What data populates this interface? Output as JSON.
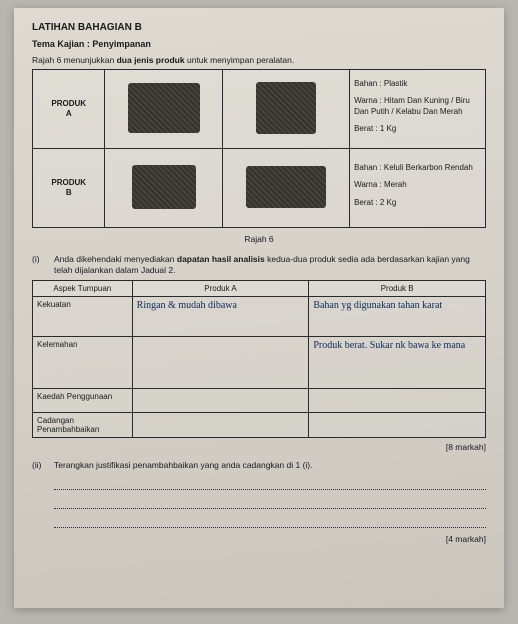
{
  "heading": "LATIHAN BAHAGIAN B",
  "tema": "Tema Kajian : Penyimpanan",
  "rajahLine": {
    "pre": "Rajah 6 menunjukkan ",
    "bold": "dua jenis produk",
    "post": " untuk menyimpan peralatan."
  },
  "products": [
    {
      "label_line1": "PRODUK",
      "label_line2": "A",
      "bahan": "Bahan : Plastik",
      "warna": "Warna : Hitam Dan Kuning / Biru Dan Putih / Kelabu Dan Merah",
      "berat": "Berat : 1 Kg"
    },
    {
      "label_line1": "PRODUK",
      "label_line2": "B",
      "bahan": "Bahan : Keluli Berkarbon Rendah",
      "warna": "Warna : Merah",
      "berat": "Berat : 2 Kg"
    }
  ],
  "caption": "Rajah 6",
  "q1": {
    "num": "(i)",
    "text_pre": "Anda dikehendaki menyediakan ",
    "text_bold": "dapatan hasil analisis",
    "text_post": " kedua-dua produk sedia ada berdasarkan kajian yang telah dijalankan dalam Jadual 2."
  },
  "analysis": {
    "col_aspek": "Aspek Tumpuan",
    "col_a": "Produk A",
    "col_b": "Produk B",
    "rows": [
      {
        "aspek": "Kekuatan",
        "a": "Ringan & mudah dibawa",
        "b": "Bahan yg digunakan tahan karat"
      },
      {
        "aspek": "Kelemahan",
        "a": "",
        "b": "Produk berat. Sukar nk bawa ke mana"
      },
      {
        "aspek": "Kaedah Penggunaan",
        "a": "",
        "b": ""
      },
      {
        "aspek": "Cadangan Penambahbaikan",
        "a": "",
        "b": ""
      }
    ]
  },
  "marks1": "[8 markah]",
  "q2": {
    "num": "(ii)",
    "text": "Terangkan justifikasi penambahbaikan yang anda cadangkan di 1 (i)."
  },
  "marks2": "[4 markah]",
  "style": {
    "col_widths_prod": [
      "16%",
      "26%",
      "28%",
      "30%"
    ],
    "col_widths_analysis": [
      "22%",
      "39%",
      "39%"
    ],
    "row_heights_analysis": [
      "40px",
      "52px",
      "24px",
      "24px"
    ]
  }
}
